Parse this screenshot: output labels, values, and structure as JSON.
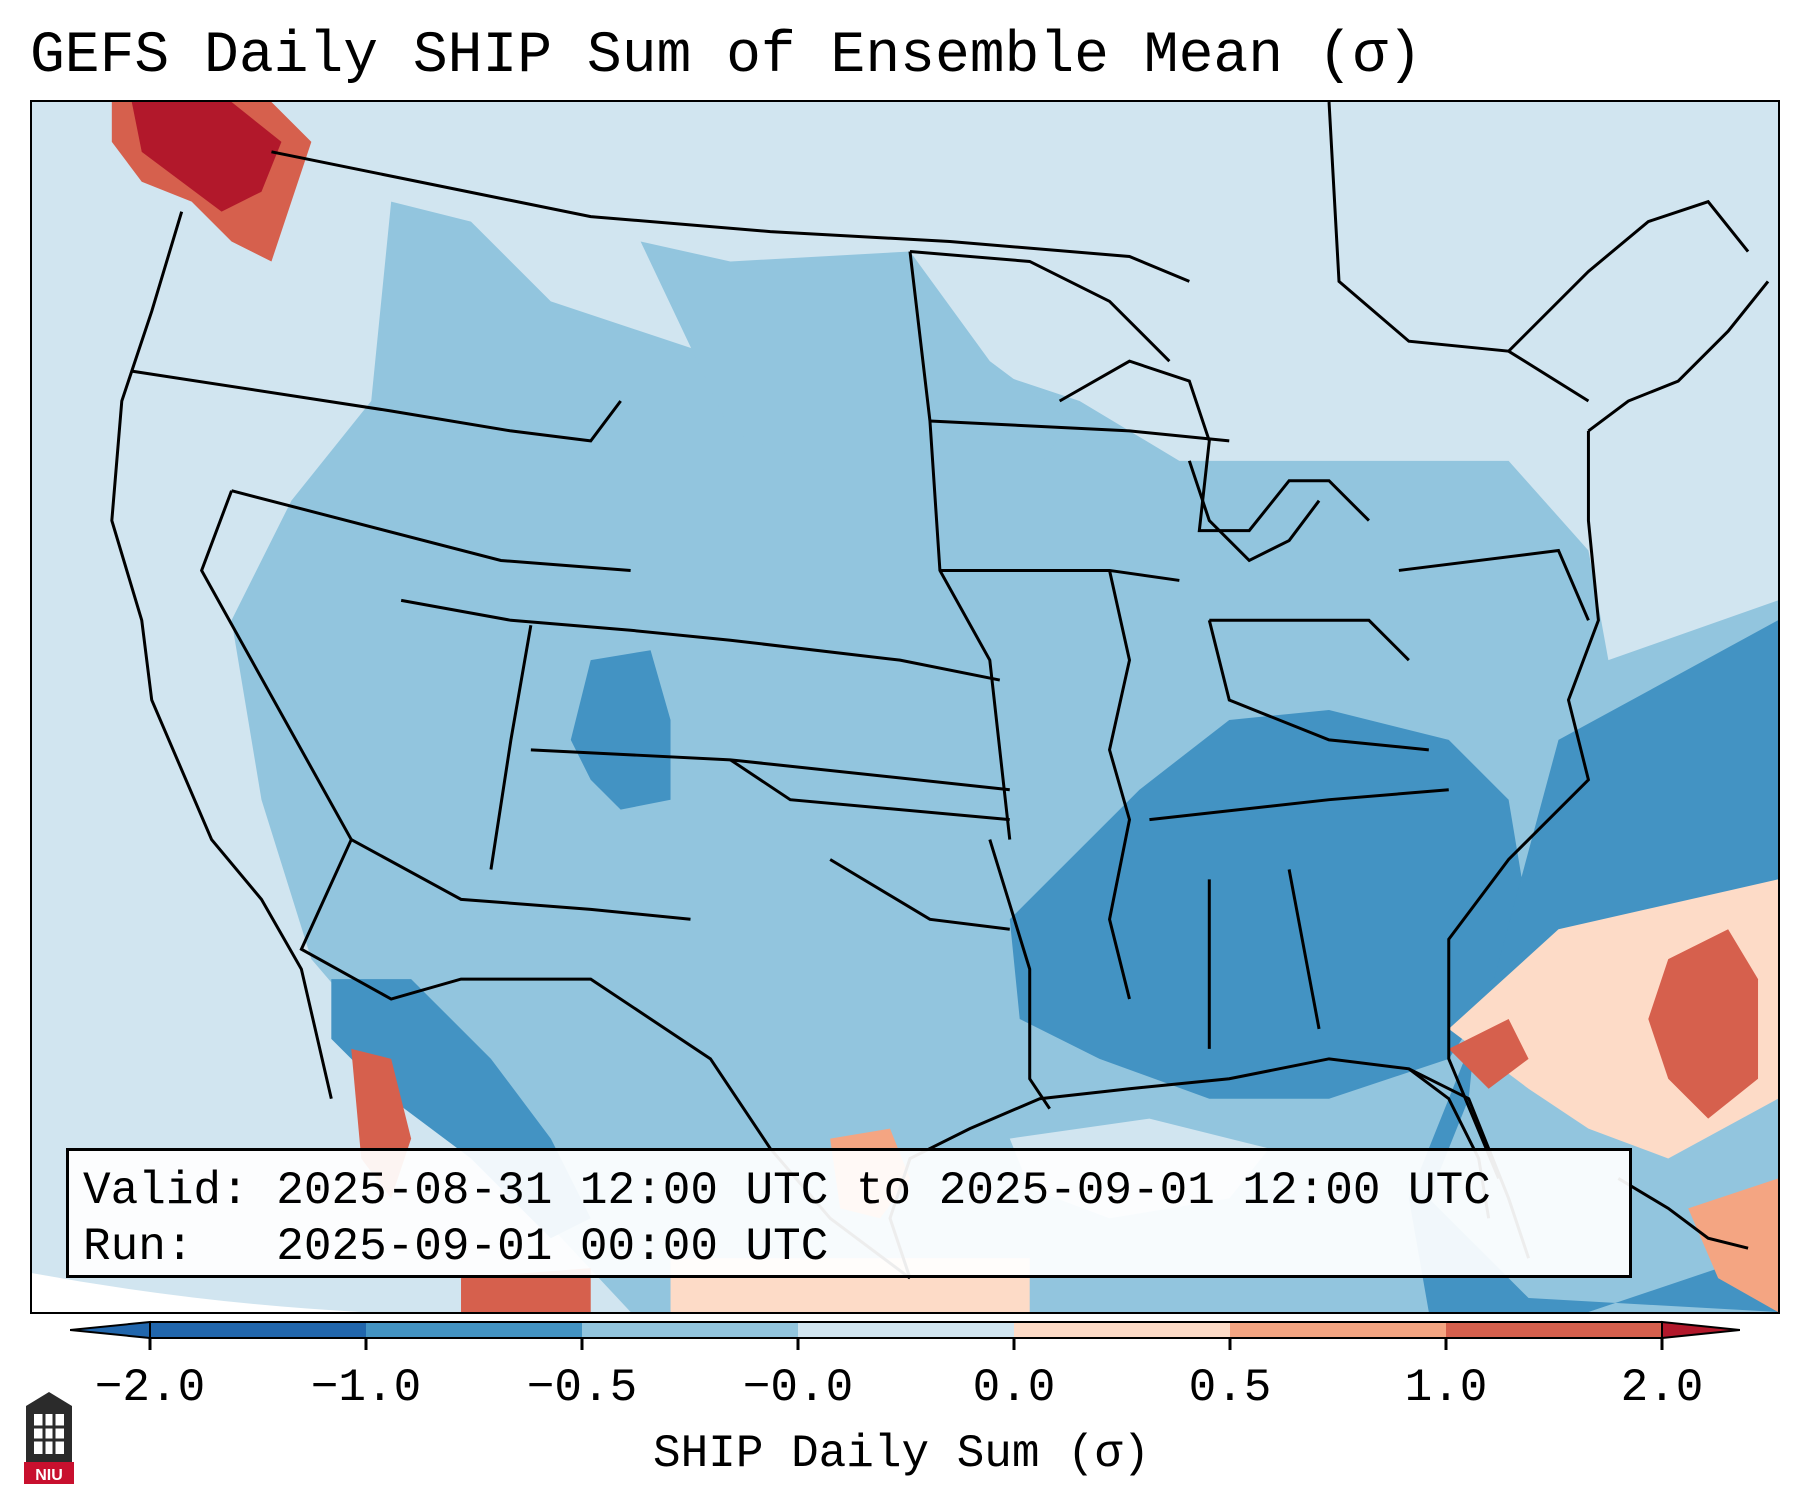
{
  "title": "GEFS Daily SHIP Sum of Ensemble Mean (σ)",
  "info": {
    "valid_label": "Valid:",
    "valid_value": "2025-08-31 12:00 UTC to 2025-09-01 12:00 UTC",
    "run_label": "Run:",
    "run_value": "2025-09-01 00:00 UTC"
  },
  "colorbar": {
    "label": "SHIP Daily Sum (σ)",
    "ticks": [
      "−2.0",
      "−1.0",
      "−0.5",
      "−0.0",
      "0.0",
      "0.5",
      "1.0",
      "2.0"
    ],
    "colors": [
      "#2166ac",
      "#4393c3",
      "#92c5de",
      "#d1e5f0",
      "#fddbc7",
      "#f4a582",
      "#d6604d",
      "#b2182b"
    ]
  },
  "logo": {
    "text": "NIU",
    "icon": "niu-logo-icon"
  },
  "map": {
    "region": "Contiguous United States",
    "background_color": "#d1e5f0",
    "outline_color": "#000000"
  }
}
